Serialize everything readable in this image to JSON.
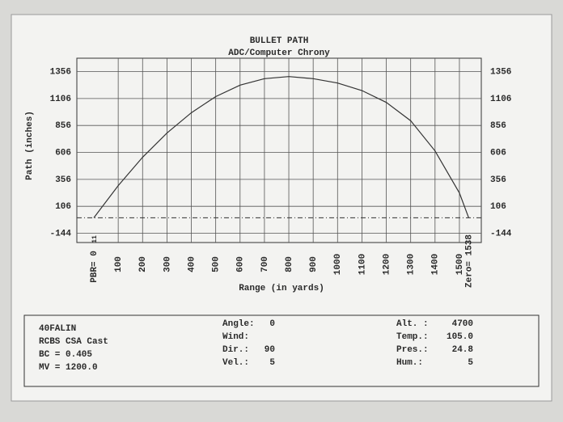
{
  "chart_data": {
    "type": "line",
    "title": "BULLET PATH",
    "subtitle": "ADC/Computer Chrony",
    "y_label": "Path (inches)",
    "x_label": "Range (in yards)",
    "pbr_label": "PBR= 0",
    "zero_label": "Zero= 1538",
    "near_zero_label": "11",
    "x": [
      0,
      100,
      200,
      300,
      400,
      500,
      600,
      700,
      800,
      900,
      1000,
      1100,
      1200,
      1300,
      1400,
      1500,
      1538
    ],
    "series": [
      {
        "name": "Path",
        "color": "#333333",
        "values": [
          0,
          298,
          561,
          786,
          974,
          1124,
          1230,
          1290,
          1310,
          1290,
          1250,
          1180,
          1070,
          900,
          620,
          230,
          0
        ]
      }
    ],
    "xlim": [
      -10,
      1550
    ],
    "ylim": [
      -230,
      1480
    ],
    "xticks": [
      100,
      200,
      300,
      400,
      500,
      600,
      700,
      800,
      900,
      1000,
      1100,
      1200,
      1300,
      1400,
      1500
    ],
    "yticks": [
      -144,
      106,
      356,
      606,
      856,
      1106,
      1356
    ],
    "grid": true
  },
  "info": {
    "load": [
      "40FALIN",
      "RCBS CSA  Cast",
      "BC = 0.405",
      "MV = 1200.0"
    ],
    "middle": [
      [
        "Angle:",
        "0"
      ],
      [
        "Wind:",
        ""
      ],
      [
        "Dir.:",
        "90"
      ],
      [
        "Vel.:",
        "5"
      ]
    ],
    "right": [
      [
        "Alt. :",
        "4700"
      ],
      [
        "Temp.:",
        "105.0"
      ],
      [
        "Pres.:",
        "24.8"
      ],
      [
        "Hum.:",
        "5"
      ]
    ]
  }
}
